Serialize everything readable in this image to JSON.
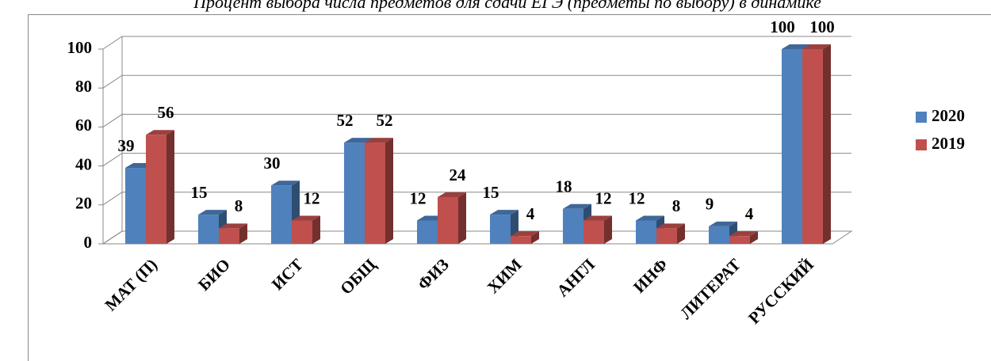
{
  "chart_data": {
    "type": "bar3d",
    "title": "Процент выбора числа предметов для сдачи ЕГЭ (предметы по выбору) в динамике",
    "categories": [
      "МАТ (П)",
      "БИО",
      "ИСТ",
      "ОБЩ",
      "ФИЗ",
      "ХИМ",
      "АНГЛ",
      "ИНФ",
      "ЛИТЕРАТ",
      "РУССКИЙ"
    ],
    "series": [
      {
        "name": "2020",
        "color": "#4f81bd",
        "values": [
          39,
          15,
          30,
          52,
          12,
          15,
          18,
          12,
          9,
          100
        ]
      },
      {
        "name": "2019",
        "color": "#c0504d",
        "values": [
          56,
          8,
          12,
          52,
          24,
          4,
          12,
          8,
          4,
          100
        ]
      }
    ],
    "ylim": [
      0,
      100
    ],
    "yticks": [
      0,
      20,
      40,
      60,
      80,
      100
    ],
    "grid": true,
    "legend": "right"
  }
}
